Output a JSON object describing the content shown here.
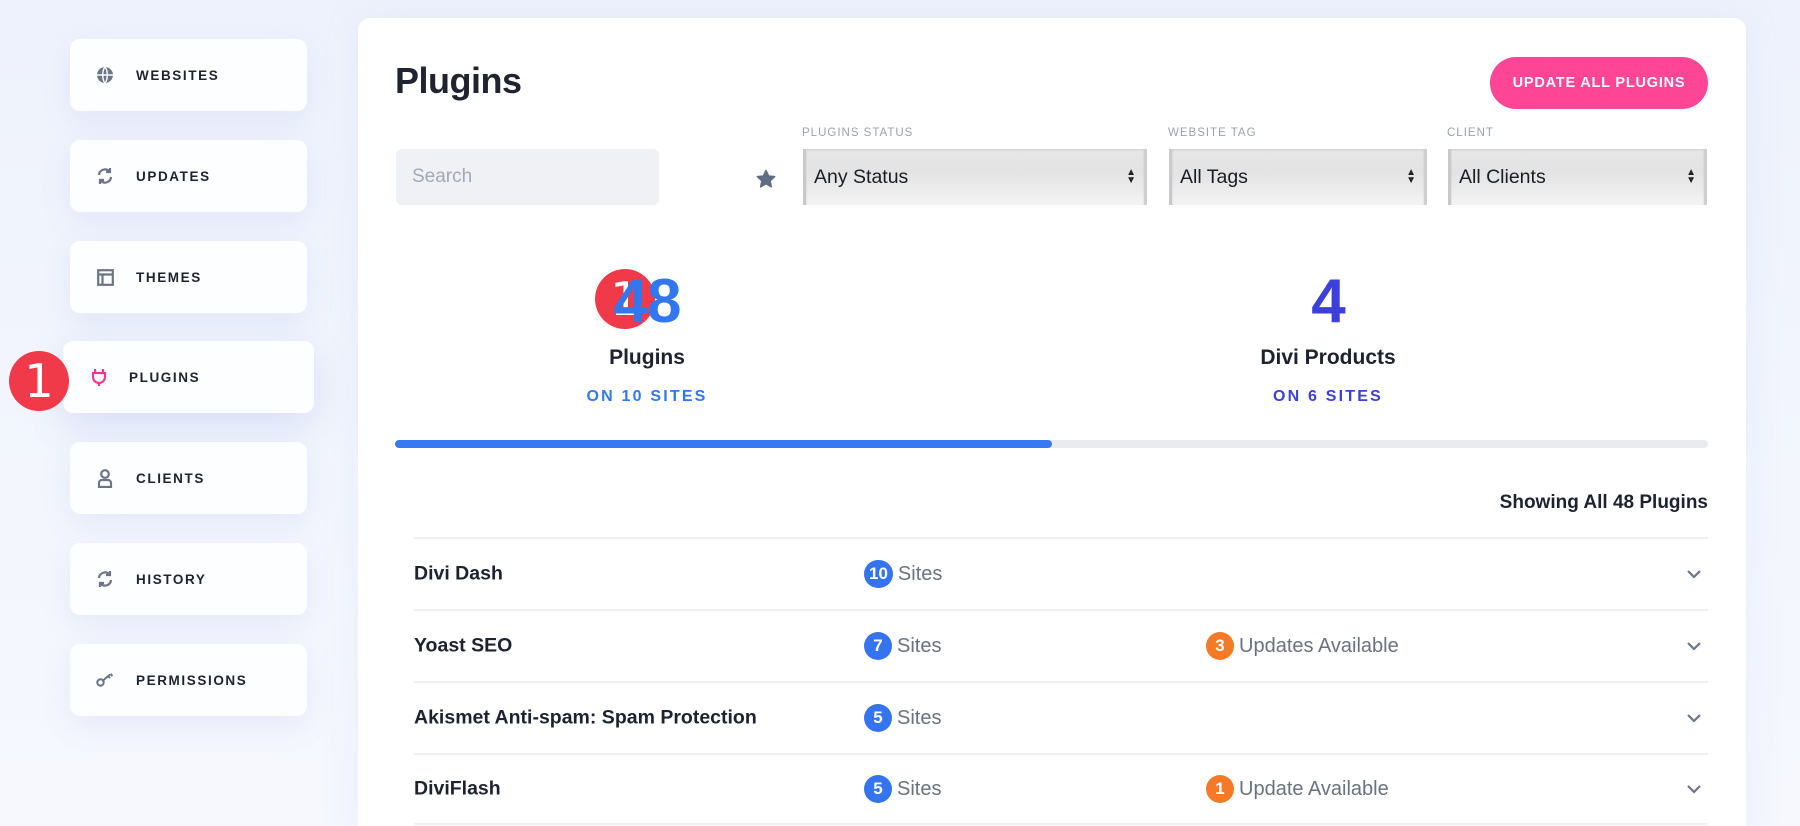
{
  "sidebar": {
    "items": [
      {
        "label": "WEBSITES",
        "icon": "globe-icon"
      },
      {
        "label": "UPDATES",
        "icon": "refresh-icon"
      },
      {
        "label": "THEMES",
        "icon": "layout-icon"
      },
      {
        "label": "PLUGINS",
        "icon": "plug-icon",
        "active": true
      },
      {
        "label": "CLIENTS",
        "icon": "user-icon"
      },
      {
        "label": "HISTORY",
        "icon": "refresh-icon"
      },
      {
        "label": "PERMISSIONS",
        "icon": "key-icon"
      }
    ],
    "step_badge": "1"
  },
  "header": {
    "title": "Plugins",
    "update_all_label": "UPDATE ALL PLUGINS"
  },
  "filters": {
    "search_placeholder": "Search",
    "search_value": "",
    "status": {
      "label": "PLUGINS STATUS",
      "value": "Any Status"
    },
    "tag": {
      "label": "WEBSITE TAG",
      "value": "All Tags"
    },
    "client": {
      "label": "CLIENT",
      "value": "All Clients"
    }
  },
  "stats": {
    "step_badge": "1",
    "plugins": {
      "count": "48",
      "label": "Plugins",
      "sub": "ON 10 SITES"
    },
    "divi": {
      "count": "4",
      "label": "Divi Products",
      "sub": "ON 6 SITES"
    },
    "progress_percent": 50
  },
  "list": {
    "showing": "Showing All 48 Plugins",
    "rows": [
      {
        "name": "Divi Dash",
        "sites_count": "10",
        "sites_label": "Sites",
        "updates_count": "",
        "updates_label": ""
      },
      {
        "name": "Yoast SEO",
        "sites_count": "7",
        "sites_label": "Sites",
        "updates_count": "3",
        "updates_label": "Updates Available"
      },
      {
        "name": "Akismet Anti-spam: Spam Protection",
        "sites_count": "5",
        "sites_label": "Sites",
        "updates_count": "",
        "updates_label": ""
      },
      {
        "name": "DiviFlash",
        "sites_count": "5",
        "sites_label": "Sites",
        "updates_count": "1",
        "updates_label": "Update Available"
      }
    ]
  },
  "colors": {
    "accent_pink": "#ff4595",
    "blue": "#3474ee",
    "indigo": "#3b3fdc",
    "orange": "#f47a27",
    "step_red": "#f03a49"
  }
}
